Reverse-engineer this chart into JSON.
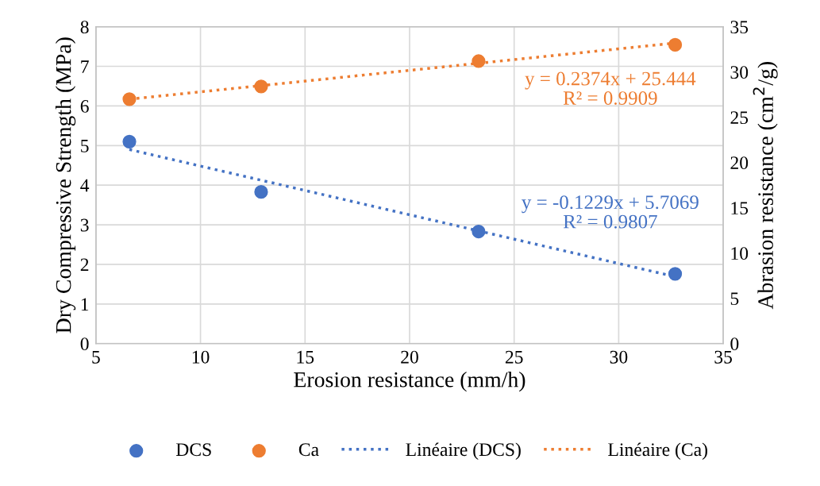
{
  "chart_data": {
    "type": "scatter",
    "xlabel": "Erosion resistance (mm/h)",
    "ylabel": "Dry Compressive Strength (MPa)",
    "y2label": "Abrasion resistance (cm$^{2}$/g)",
    "xlim": [
      5,
      35
    ],
    "xticks": [
      5,
      10,
      15,
      20,
      25,
      30,
      35
    ],
    "ylim": [
      0,
      8
    ],
    "yticks": [
      0,
      1,
      2,
      3,
      4,
      5,
      6,
      7,
      8
    ],
    "y2lim": [
      0,
      35
    ],
    "y2ticks": [
      0,
      5,
      10,
      15,
      20,
      25,
      30,
      35
    ],
    "grid": true,
    "legend": "bottom",
    "marker": "circle",
    "series": [
      {
        "name": "DCS",
        "color": "#4472c4",
        "x": [
          6.6,
          12.9,
          23.3,
          32.7
        ],
        "values": [
          5.1,
          3.83,
          2.83,
          1.76
        ]
      },
      {
        "name": "Ca",
        "axis": "y2",
        "color": "#ed7d31",
        "x": [
          6.6,
          12.9,
          23.3,
          32.7
        ],
        "values": [
          27.0,
          28.4,
          31.2,
          33.0
        ]
      },
      {
        "name": "Linéaire (DCS)",
        "type": "line",
        "line_style": "dotted",
        "marker": "none",
        "color": "#4472c4",
        "x": [
          6.6,
          32.7
        ],
        "values": [
          4.9,
          1.69
        ]
      },
      {
        "name": "Linéaire (Ca)",
        "type": "line",
        "line_style": "dotted",
        "marker": "none",
        "axis": "y2",
        "color": "#ed7d31",
        "x": [
          6.6,
          32.7
        ],
        "values": [
          27.0,
          33.2
        ]
      }
    ],
    "annotations": [
      "y = 0.2374x + 25.444\nR² = 0.9909",
      "y = -0.1229x + 5.7069\nR² = 0.9807"
    ]
  }
}
